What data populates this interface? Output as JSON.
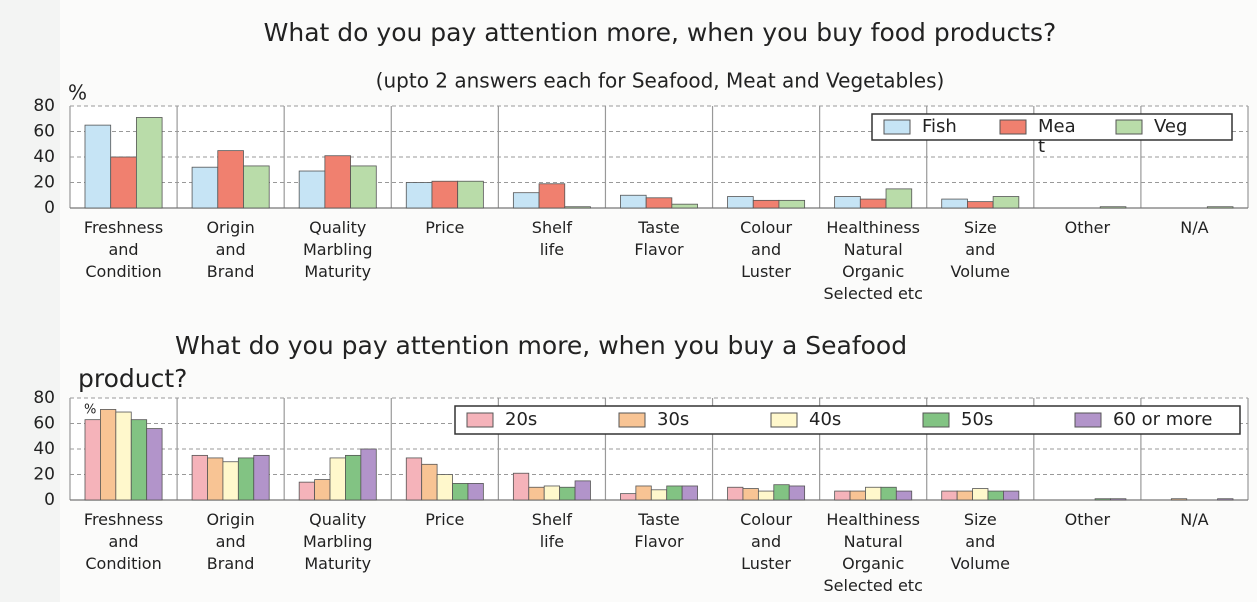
{
  "chart_data": [
    {
      "type": "bar",
      "title": "What do you pay attention more, when you buy food products?",
      "subtitle": "(upto 2 answers each for Seafood, Meat and Vegetables)",
      "y_label": "%",
      "categories": [
        "Freshness\nand\nCondition",
        "Origin\nand\nBrand",
        "Quality\nMarbling\nMaturity",
        "Price",
        "Shelf\nlife",
        "Taste\nFlavor",
        "Colour\nand\nLuster",
        "Healthiness\nNatural\nOrganic\nSelected etc",
        "Size\nand\nVolume",
        "Other",
        "N/A"
      ],
      "series": [
        {
          "name": "Fish",
          "color": "#c6e4f5",
          "values": [
            65,
            32,
            29,
            20,
            12,
            10,
            9,
            9,
            7,
            0,
            0
          ]
        },
        {
          "name": "Mea\nt",
          "color": "#f0806f",
          "values": [
            40,
            45,
            41,
            21,
            19,
            8,
            6,
            7,
            5,
            0,
            0
          ]
        },
        {
          "name": "Veg",
          "color": "#b9dca9",
          "values": [
            71,
            33,
            33,
            21,
            1,
            3,
            6,
            15,
            9,
            1,
            1
          ]
        }
      ],
      "ylim": [
        0,
        80
      ],
      "yticks": [
        0,
        20,
        40,
        60,
        80
      ],
      "grid": true,
      "legend": "upper right"
    },
    {
      "type": "bar",
      "title": "What do you pay attention more, when you buy a Seafood\nproduct?",
      "y_label": "%",
      "categories": [
        "Freshness\nand\nCondition",
        "Origin\nand\nBrand",
        "Quality\nMarbling\nMaturity",
        "Price",
        "Shelf\nlife",
        "Taste\nFlavor",
        "Colour\nand\nLuster",
        "Healthiness\nNatural\nOrganic\nSelected etc",
        "Size\nand\nVolume",
        "Other",
        "N/A"
      ],
      "series": [
        {
          "name": "20s",
          "color": "#f5b3ba",
          "values": [
            63,
            35,
            14,
            33,
            21,
            5,
            10,
            7,
            7,
            0,
            0
          ]
        },
        {
          "name": "30s",
          "color": "#f8c494",
          "values": [
            71,
            33,
            16,
            28,
            10,
            11,
            9,
            7,
            7,
            0,
            1
          ]
        },
        {
          "name": "40s",
          "color": "#fff8cc",
          "values": [
            69,
            30,
            33,
            20,
            11,
            8,
            7,
            10,
            9,
            0,
            0
          ]
        },
        {
          "name": "50s",
          "color": "#82c383",
          "values": [
            63,
            33,
            35,
            13,
            10,
            11,
            12,
            10,
            7,
            1,
            0
          ]
        },
        {
          "name": "60 or more",
          "color": "#b294ca",
          "values": [
            56,
            35,
            40,
            13,
            15,
            11,
            11,
            7,
            7,
            1,
            1
          ]
        }
      ],
      "ylim": [
        0,
        80
      ],
      "yticks": [
        0,
        20,
        40,
        60,
        80
      ],
      "grid": true,
      "legend": "upper right"
    }
  ]
}
